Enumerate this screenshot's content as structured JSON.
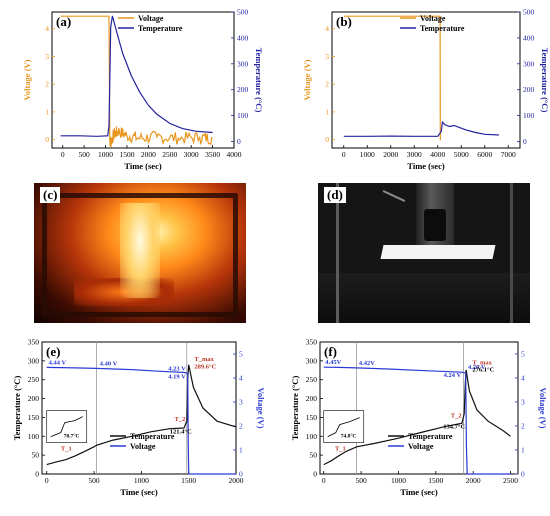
{
  "colors": {
    "voltage_ab": "#e8961e",
    "temperature_ab": "#2222a0",
    "voltage_ef": "#2b3bd6",
    "temperature_ef": "#111111",
    "grid_line": "#9a9a9a"
  },
  "panels": {
    "a": "(a)",
    "b": "(b)",
    "c": "(c)",
    "d": "(d)",
    "e": "(e)",
    "f": "(f)"
  },
  "photos": {
    "c": {
      "label": "(c)",
      "subject": "flame"
    },
    "d": {
      "label": "(d)",
      "subject": "test-rig"
    }
  },
  "chart_data": [
    {
      "id": "a",
      "type": "line",
      "xlabel": "Time (sec)",
      "ylabel_left": "Voltage (V)",
      "ylabel_right": "Temperature (°C)",
      "xlim": [
        -250,
        4000
      ],
      "ylim_left": [
        -0.3,
        4.6
      ],
      "ylim_right": [
        -25,
        500
      ],
      "xticks": [
        "0",
        "500",
        "1000",
        "1500",
        "2000",
        "2500",
        "3000",
        "3500",
        "4000"
      ],
      "yticks_left": [
        "0",
        "1",
        "2",
        "3",
        "4"
      ],
      "yticks_right": [
        "0",
        "100",
        "200",
        "300",
        "400",
        "500"
      ],
      "legend": "top-right",
      "series": [
        {
          "name": "Voltage",
          "axis": "left",
          "x": [
            -50,
            1080,
            1100,
            1120,
            1200,
            1300,
            1500,
            1800,
            2200,
            2700,
            3200,
            3500
          ],
          "y": [
            4.45,
            4.45,
            0.0,
            -0.1,
            0.2,
            0.3,
            0.15,
            0.05,
            0.1,
            0.05,
            0.08,
            0.05
          ],
          "noisy_after": 1100
        },
        {
          "name": "Temperature",
          "axis": "right",
          "x": [
            -50,
            400,
            800,
            1050,
            1080,
            1120,
            1160,
            1250,
            1400,
            1600,
            1800,
            2000,
            2200,
            2500,
            2800,
            3100,
            3500
          ],
          "y": [
            22,
            22,
            20,
            22,
            60,
            440,
            485,
            430,
            340,
            255,
            190,
            140,
            105,
            70,
            50,
            40,
            35
          ]
        }
      ]
    },
    {
      "id": "b",
      "type": "line",
      "xlabel": "Time (sec)",
      "ylabel_left": "Voltage (V)",
      "ylabel_right": "Temperature (°C)",
      "xlim": [
        -500,
        7500
      ],
      "ylim_left": [
        -0.3,
        4.6
      ],
      "ylim_right": [
        -25,
        500
      ],
      "xticks": [
        "0",
        "1000",
        "2000",
        "3000",
        "4000",
        "5000",
        "6000",
        "7000"
      ],
      "yticks_left": [
        "0",
        "1",
        "2",
        "3",
        "4"
      ],
      "yticks_right": [
        "0",
        "100",
        "200",
        "300",
        "400",
        "500"
      ],
      "legend": "top-right",
      "series": [
        {
          "name": "Voltage",
          "axis": "left",
          "x": [
            0,
            4100,
            4110,
            4140
          ],
          "y": [
            4.45,
            4.45,
            0.0,
            0.0
          ]
        },
        {
          "name": "Temperature",
          "axis": "right",
          "x": [
            0,
            1000,
            2000,
            3000,
            4000,
            4150,
            4200,
            4300,
            4500,
            4700,
            4900,
            5200,
            5600,
            6000,
            6600
          ],
          "y": [
            20,
            20,
            21,
            20,
            20,
            40,
            75,
            65,
            58,
            62,
            55,
            45,
            35,
            28,
            25
          ]
        }
      ]
    },
    {
      "id": "e",
      "type": "line",
      "xlabel": "Time (sec)",
      "ylabel_left": "Temperature (°C)",
      "ylabel_right": "Voltage (V)",
      "xlim": [
        -50,
        2000
      ],
      "ylim_left": [
        0,
        350
      ],
      "ylim_right": [
        0,
        5.5
      ],
      "xticks": [
        "0",
        "500",
        "1000",
        "1500",
        "2000"
      ],
      "yticks_left": [
        "0",
        "50",
        "100",
        "150",
        "200",
        "250",
        "300",
        "350"
      ],
      "yticks_right": [
        "0",
        "1",
        "2",
        "3",
        "4",
        "5"
      ],
      "legend": "bottom-center",
      "vlines": [
        525,
        1480
      ],
      "annotations": [
        "4.44 V",
        "4.40 V",
        "4.23 V",
        "4.19 V",
        "T_1",
        "T_2",
        "T_max",
        "121.4°C",
        "289.6°C",
        "78.7°C"
      ],
      "series": [
        {
          "name": "Temperature",
          "axis": "left",
          "x": [
            0,
            100,
            200,
            300,
            400,
            500,
            525,
            700,
            900,
            1100,
            1300,
            1450,
            1480,
            1490,
            1500,
            1550,
            1650,
            1800,
            2000
          ],
          "y": [
            25,
            32,
            38,
            48,
            60,
            72,
            76,
            90,
            100,
            112,
            120,
            122,
            140,
            250,
            289.6,
            230,
            175,
            140,
            125
          ]
        },
        {
          "name": "Voltage",
          "axis": "right",
          "x": [
            0,
            300,
            525,
            900,
            1200,
            1460,
            1490,
            1495,
            1500,
            2000
          ],
          "y": [
            4.44,
            4.42,
            4.4,
            4.35,
            4.28,
            4.23,
            4.19,
            1.5,
            0.0,
            0.0
          ]
        }
      ]
    },
    {
      "id": "f",
      "type": "line",
      "xlabel": "Time (sec)",
      "ylabel_left": "Temperature (°C)",
      "ylabel_right": "Voltage (V)",
      "xlim": [
        -50,
        2600
      ],
      "ylim_left": [
        0,
        350
      ],
      "ylim_right": [
        0,
        5.5
      ],
      "xticks": [
        "0",
        "500",
        "1000",
        "1500",
        "2000",
        "2500"
      ],
      "yticks_left": [
        "0",
        "50",
        "100",
        "150",
        "200",
        "250",
        "300",
        "350"
      ],
      "yticks_right": [
        "0",
        "1",
        "2",
        "3",
        "4",
        "5"
      ],
      "legend": "bottom-center",
      "vlines": [
        440,
        1870
      ],
      "annotations": [
        "4.45V",
        "4.42V",
        "4.24 V",
        "4.20 V",
        "T_1",
        "T_2",
        "T_max",
        "134.7°C",
        "276.1°C",
        "74.8°C"
      ],
      "series": [
        {
          "name": "Temperature",
          "axis": "left",
          "x": [
            0,
            100,
            200,
            300,
            440,
            700,
            1000,
            1300,
            1600,
            1850,
            1880,
            1895,
            1905,
            1950,
            2050,
            2200,
            2400,
            2500
          ],
          "y": [
            25,
            35,
            48,
            60,
            72,
            82,
            95,
            110,
            125,
            134.7,
            160,
            240,
            276.1,
            220,
            170,
            140,
            115,
            100
          ]
        },
        {
          "name": "Voltage",
          "axis": "right",
          "x": [
            0,
            200,
            440,
            900,
            1400,
            1850,
            1900,
            1910,
            1920,
            2500
          ],
          "y": [
            4.45,
            4.44,
            4.42,
            4.37,
            4.3,
            4.24,
            4.2,
            1.2,
            0.0,
            0.0
          ]
        }
      ]
    }
  ]
}
